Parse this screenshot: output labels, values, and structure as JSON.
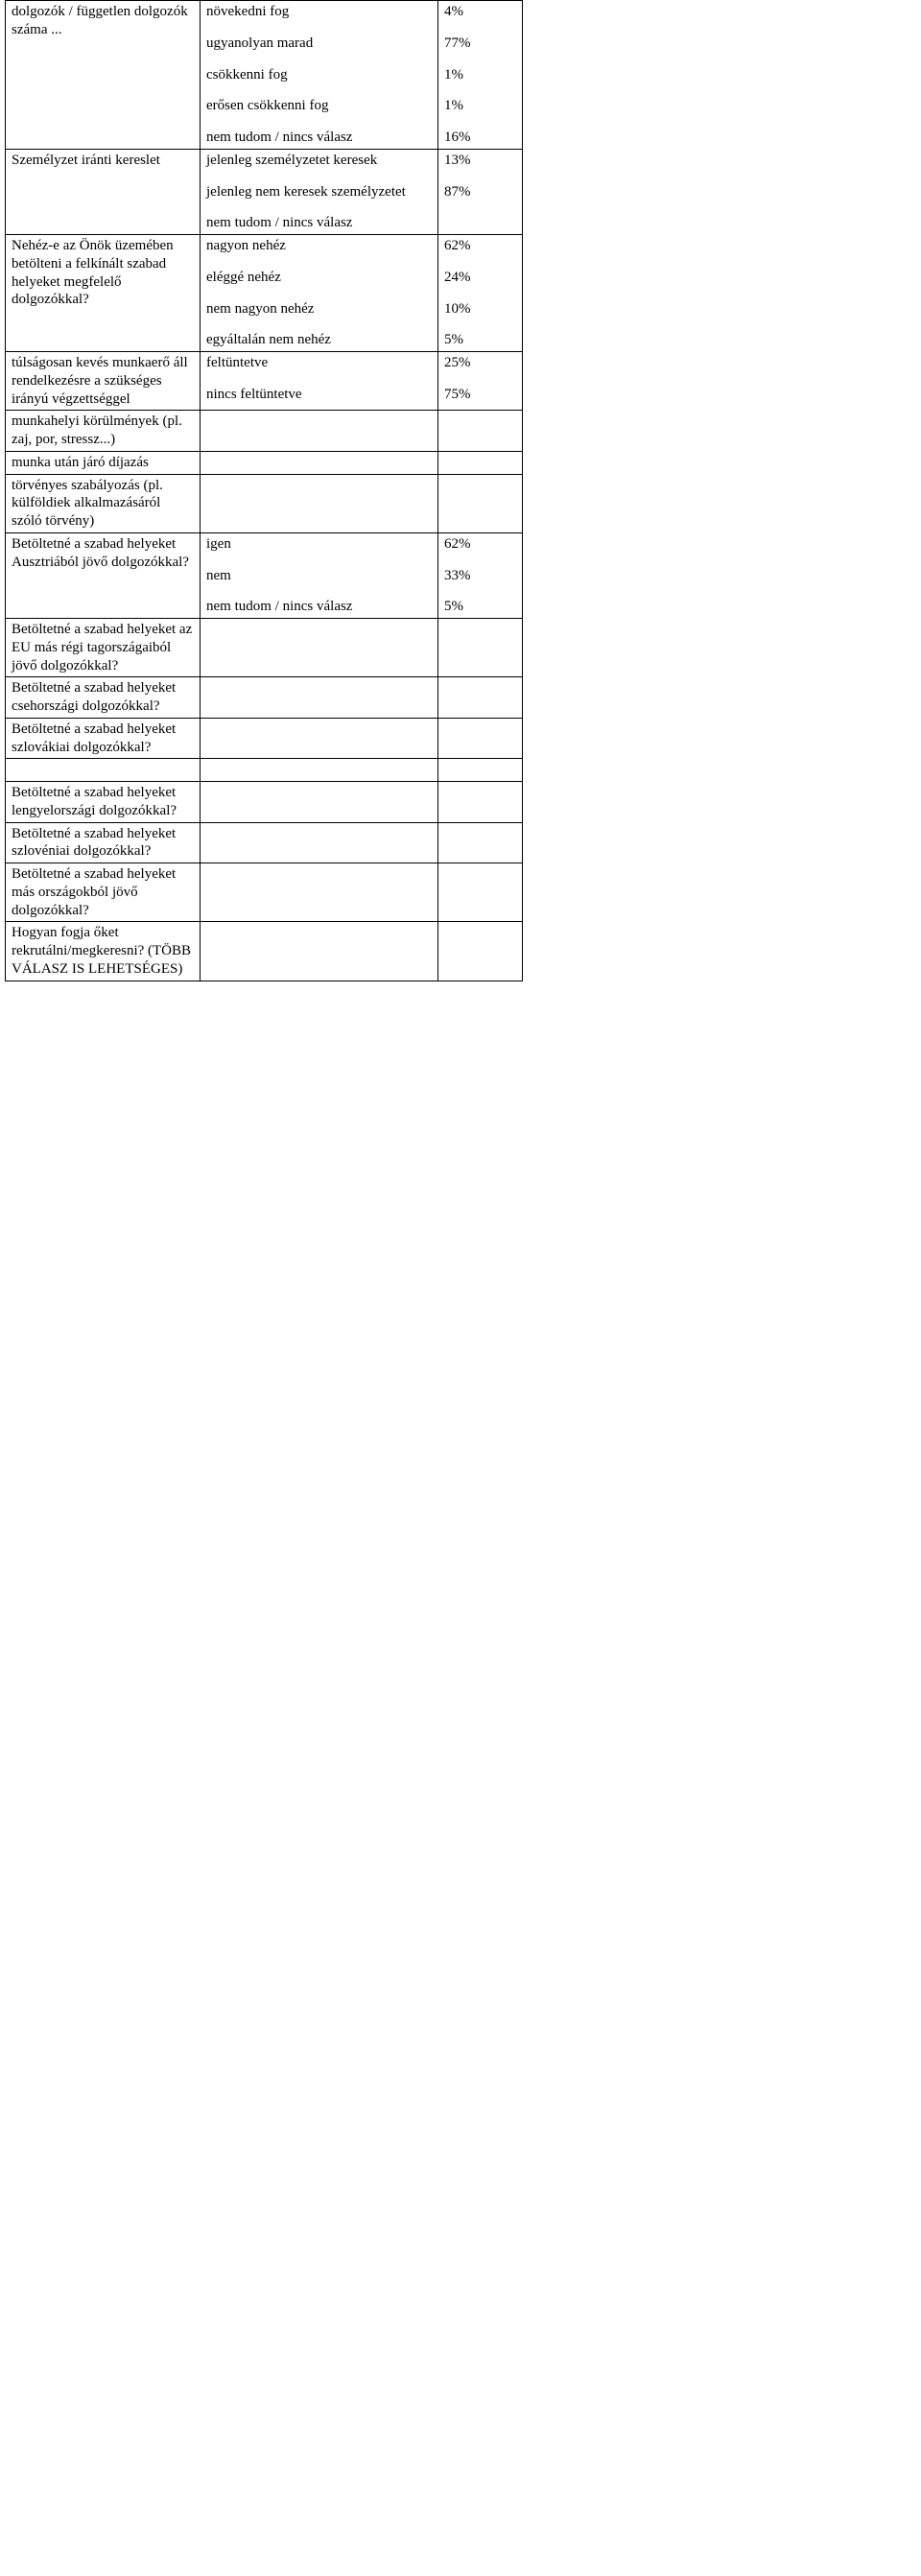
{
  "rows": [
    {
      "c1": [
        "dolgozók / független dolgozók száma ..."
      ],
      "c2": [
        "növekedni fog",
        "ugyanolyan marad",
        "csökkenni fog",
        "erősen csökkenni fog",
        "nem tudom / nincs válasz"
      ],
      "c3": [
        "4%",
        "77%",
        "1%",
        "1%",
        "16%"
      ]
    },
    {
      "c1": [
        "Személyzet iránti kereslet"
      ],
      "c2": [
        "jelenleg személyzetet keresek",
        "jelenleg nem keresek személyzetet",
        "nem tudom / nincs válasz"
      ],
      "c3": [
        "13%",
        "87%"
      ]
    },
    {
      "c1": [
        "Nehéz-e az Önök üzemében betölteni a felkínált szabad helyeket megfelelő dolgozókkal?"
      ],
      "c2": [
        "nagyon nehéz",
        "eléggé nehéz",
        "nem nagyon nehéz",
        "egyáltalán nem nehéz"
      ],
      "c3": [
        "62%",
        "24%",
        "10%",
        "5%"
      ]
    },
    {
      "c1": [
        "túlságosan kevés munkaerő áll rendelkezésre a szükséges irányú végzettséggel"
      ],
      "c2": [
        "feltüntetve",
        "nincs feltüntetve"
      ],
      "c3": [
        "25%",
        "75%"
      ]
    },
    {
      "c1": [
        "munkahelyi körülmények (pl.  zaj, por, stressz...)"
      ],
      "c2": [],
      "c3": []
    },
    {
      "c1": [
        "munka után járó díjazás"
      ],
      "c2": [],
      "c3": []
    },
    {
      "c1": [
        "törvényes szabályozás (pl. külföldiek alkalmazásáról szóló törvény)"
      ],
      "c2": [],
      "c3": []
    },
    {
      "c1": [
        "Betöltetné a szabad helyeket Ausztriából jövő dolgozókkal?"
      ],
      "c2": [
        "igen",
        "nem",
        "nem tudom / nincs válasz"
      ],
      "c3": [
        "62%",
        "33%",
        "5%"
      ]
    },
    {
      "c1": [
        "Betöltetné a szabad helyeket az EU más régi tagországaiból jövő dolgozókkal?"
      ],
      "c2": [],
      "c3": []
    },
    {
      "c1": [
        "Betöltetné a szabad helyeket csehországi dolgozókkal?"
      ],
      "c2": [],
      "c3": []
    },
    {
      "c1": [
        "Betöltetné a szabad helyeket szlovákiai dolgozókkal?"
      ],
      "c2": [],
      "c3": []
    },
    {
      "spacer": true
    },
    {
      "c1": [
        "Betöltetné a szabad helyeket lengyelországi dolgozókkal?"
      ],
      "c2": [],
      "c3": []
    },
    {
      "c1": [
        "Betöltetné a szabad helyeket szlovéniai dolgozókkal?"
      ],
      "c2": [],
      "c3": []
    },
    {
      "c1": [
        "Betöltetné a szabad helyeket más országokból jövő dolgozókkal?"
      ],
      "c2": [],
      "c3": []
    },
    {
      "c1": [
        "Hogyan fogja őket rekrutálni/megkeresni? (TÖBB VÁLASZ IS LEHETSÉGES)"
      ],
      "c2": [],
      "c3": []
    }
  ]
}
